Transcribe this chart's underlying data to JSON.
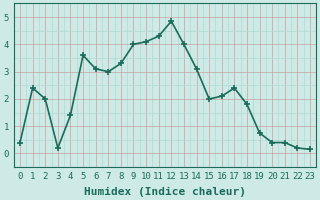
{
  "x": [
    0,
    1,
    2,
    3,
    4,
    5,
    6,
    7,
    8,
    9,
    10,
    11,
    12,
    13,
    14,
    15,
    16,
    17,
    18,
    19,
    20,
    21,
    22,
    23
  ],
  "y": [
    0.4,
    2.4,
    2.0,
    0.2,
    1.4,
    3.6,
    3.1,
    3.0,
    3.3,
    4.0,
    4.1,
    4.3,
    4.85,
    4.0,
    3.1,
    2.0,
    2.1,
    2.4,
    1.8,
    0.75,
    0.4,
    0.4,
    0.2,
    0.15
  ],
  "line_color": "#1a6b5a",
  "marker": "+",
  "marker_size": 4,
  "marker_lw": 1.2,
  "line_width": 1.2,
  "bg_color": "#ceeae6",
  "grid_major_color": "#c8a0a0",
  "grid_minor_color": "#b0d8d2",
  "xlabel": "Humidex (Indice chaleur)",
  "xlabel_fontsize": 8,
  "tick_fontsize": 6.5,
  "ylim": [
    -0.3,
    5.3
  ],
  "xlim": [
    -0.5,
    23.5
  ],
  "yticks": [
    0,
    1,
    2,
    3,
    4,
    5
  ],
  "xticks": [
    0,
    1,
    2,
    3,
    4,
    5,
    6,
    7,
    8,
    9,
    10,
    11,
    12,
    13,
    14,
    15,
    16,
    17,
    18,
    19,
    20,
    21,
    22,
    23
  ]
}
